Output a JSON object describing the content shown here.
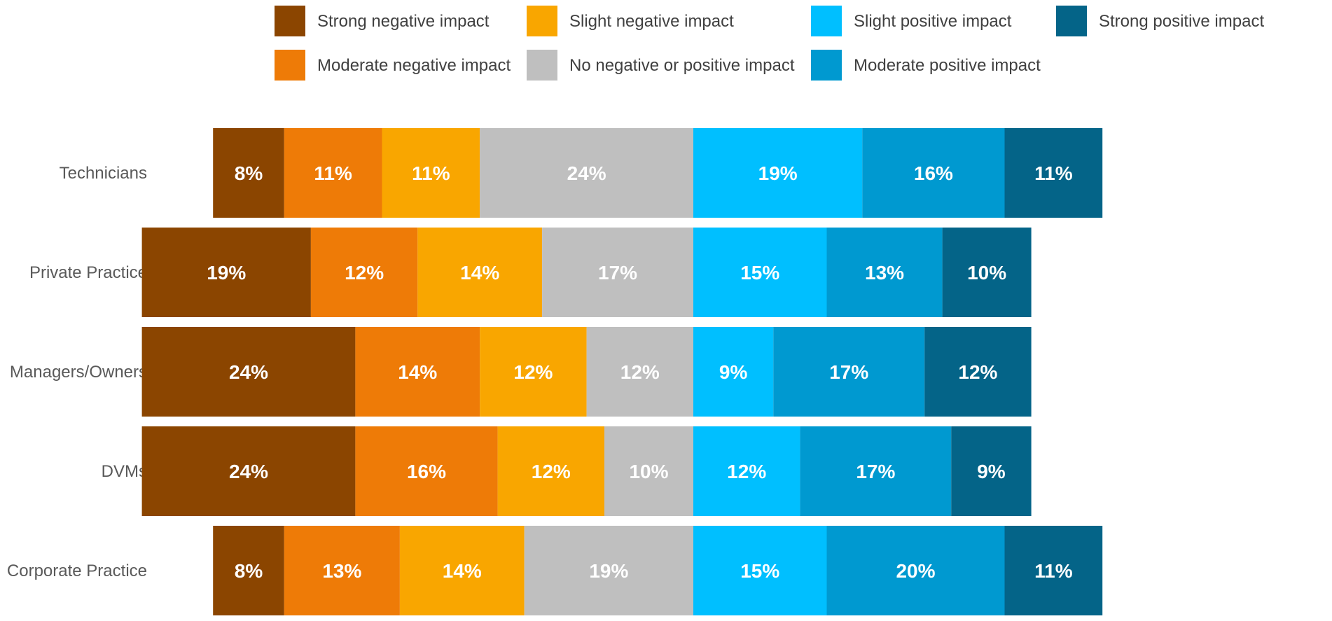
{
  "chart_data": {
    "type": "bar",
    "orientation": "horizontal",
    "stacked": true,
    "diverging": true,
    "title": "",
    "xlabel": "",
    "ylabel": "",
    "categories": [
      "Technicians",
      "Private Practice",
      "Managers/Owners",
      "DVMs",
      "Corporate Practice"
    ],
    "series": [
      {
        "name": "Strong negative impact",
        "color": "#8B4500",
        "values": [
          8,
          19,
          24,
          24,
          8
        ],
        "labels": [
          "8%",
          "19%",
          "24%",
          "24%",
          "8%"
        ]
      },
      {
        "name": "Moderate negative impact",
        "color": "#EE7B07",
        "values": [
          11,
          12,
          14,
          16,
          13
        ],
        "labels": [
          "11%",
          "12%",
          "14%",
          "16%",
          "13%"
        ]
      },
      {
        "name": "Slight negative impact",
        "color": "#F9A600",
        "values": [
          11,
          14,
          12,
          12,
          14
        ],
        "labels": [
          "11%",
          "14%",
          "12%",
          "12%",
          "14%"
        ]
      },
      {
        "name": "No negative or positive impact",
        "color": "#BFBFBF",
        "values": [
          24,
          17,
          12,
          10,
          19
        ],
        "labels": [
          "24%",
          "17%",
          "12%",
          "10%",
          "19%"
        ]
      },
      {
        "name": "Slight positive impact",
        "color": "#00BFFF",
        "values": [
          19,
          15,
          9,
          12,
          15
        ],
        "labels": [
          "19%",
          "15%",
          "9%",
          "12%",
          "15%"
        ]
      },
      {
        "name": "Moderate positive impact",
        "color": "#0099D0",
        "values": [
          16,
          13,
          17,
          17,
          20
        ],
        "labels": [
          "16%",
          "13%",
          "17%",
          "17%",
          "20%"
        ]
      },
      {
        "name": "Strong positive impact",
        "color": "#046488",
        "values": [
          11,
          10,
          12,
          9,
          11
        ],
        "labels": [
          "11%",
          "10%",
          "12%",
          "9%",
          "11%"
        ]
      }
    ],
    "legend": {
      "position": "top",
      "order": [
        "Strong negative impact",
        "Slight negative impact",
        "Slight positive impact",
        "Strong positive impact",
        "Moderate negative impact",
        "No negative or positive impact",
        "Moderate positive impact"
      ]
    },
    "grid": false
  }
}
